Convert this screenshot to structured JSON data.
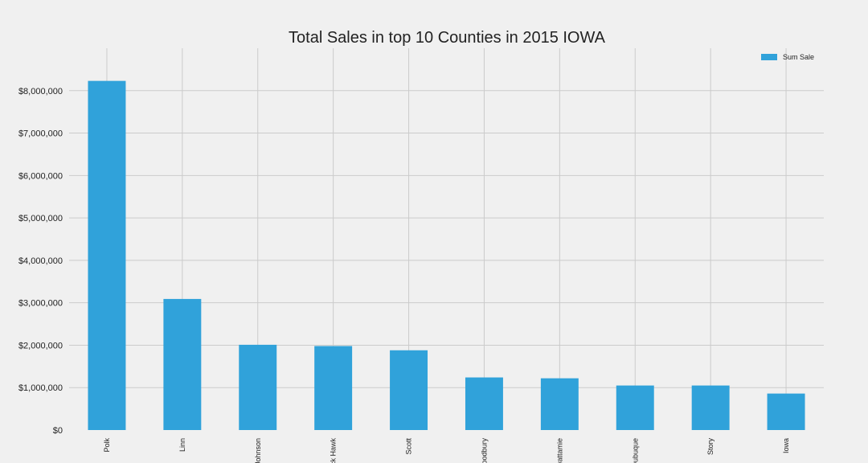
{
  "chart_data": {
    "type": "bar",
    "title": "Total Sales in top 10 Counties in 2015 IOWA",
    "xlabel": "",
    "ylabel": "",
    "categories": [
      "Polk",
      "Linn",
      "Johnson",
      "Black Hawk",
      "Scott",
      "Woodbury",
      "Pottawattamie",
      "Dubuque",
      "Story",
      "Iowa"
    ],
    "series": [
      {
        "name": "Sum Sale",
        "values": [
          8230000,
          3090000,
          2010000,
          1980000,
          1880000,
          1240000,
          1220000,
          1050000,
          1050000,
          860000
        ]
      }
    ],
    "ylim": [
      0,
      9000000
    ],
    "yticks": [
      0,
      1000000,
      2000000,
      3000000,
      4000000,
      5000000,
      6000000,
      7000000,
      8000000
    ],
    "ytick_labels": [
      "$0",
      "$1,000,000",
      "$2,000,000",
      "$3,000,000",
      "$4,000,000",
      "$5,000,000",
      "$6,000,000",
      "$7,000,000",
      "$8,000,000"
    ],
    "grid": true,
    "legend_position": "top-right",
    "colors": {
      "bar": "#30a2da",
      "background": "#f0f0f0",
      "grid": "#cbcbcb"
    }
  }
}
